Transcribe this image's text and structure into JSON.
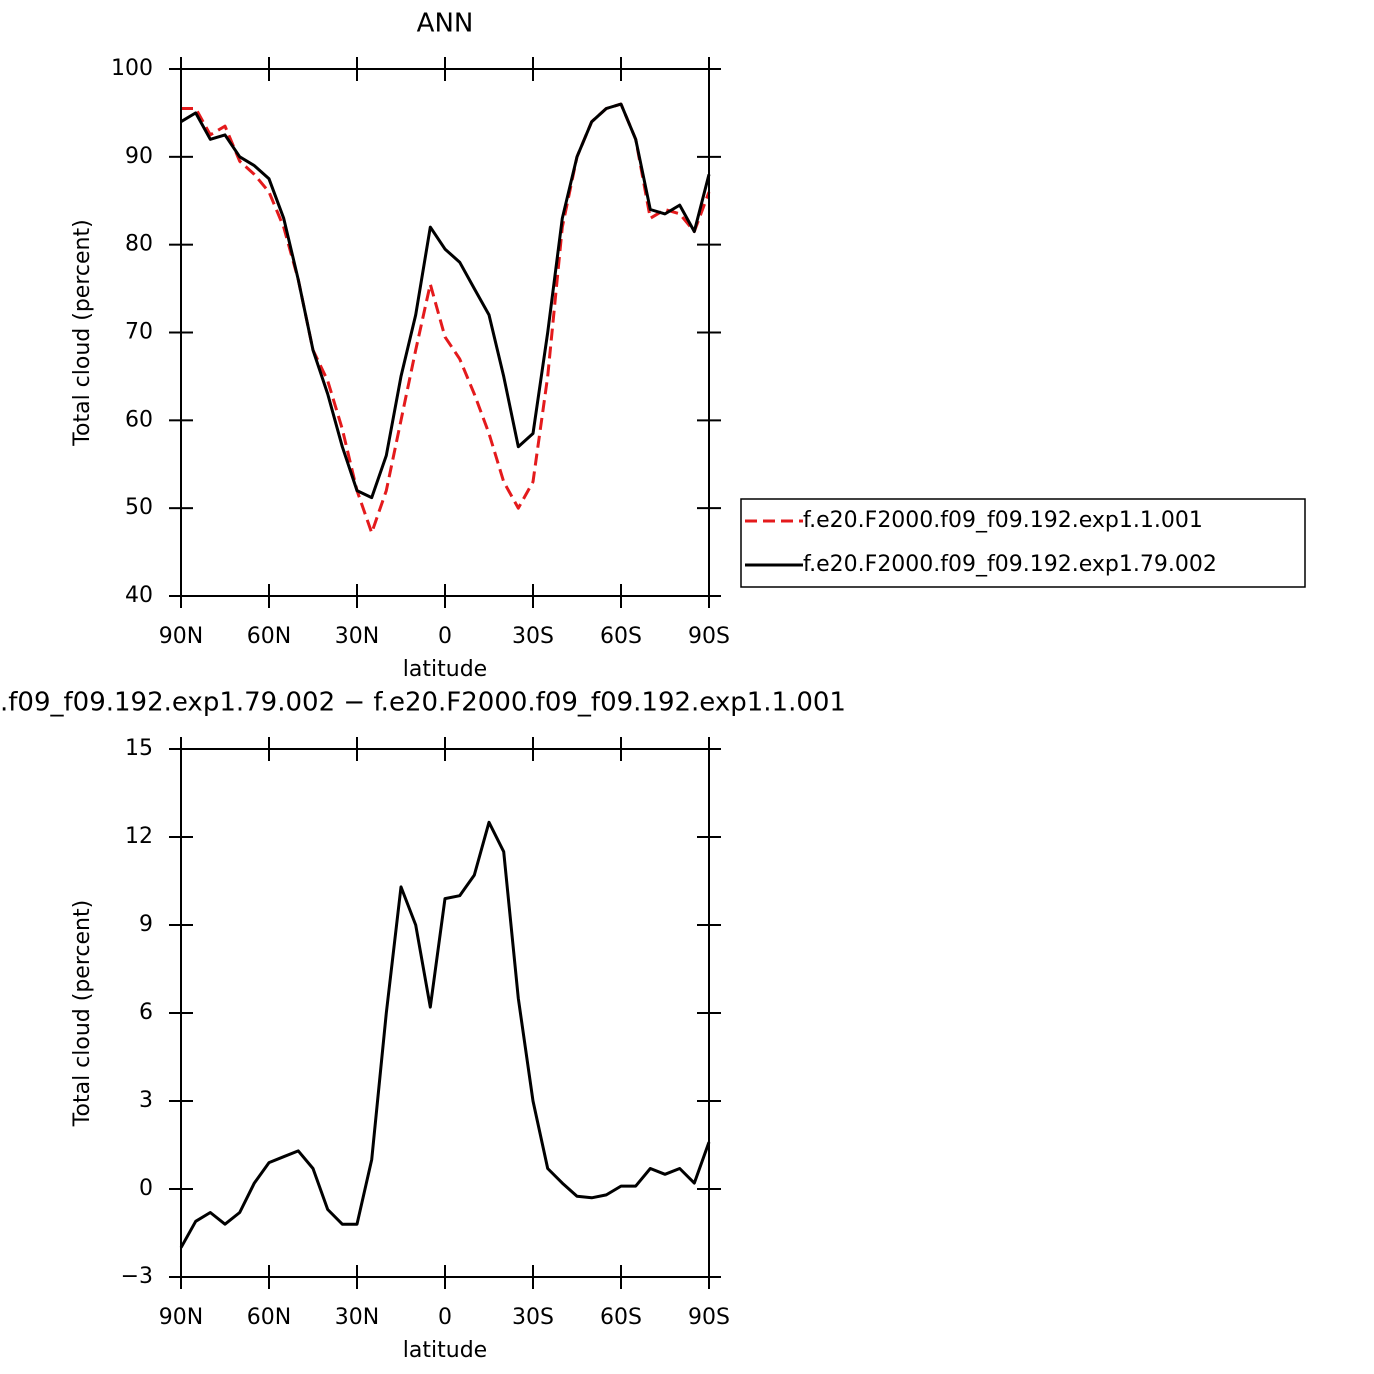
{
  "chart_data": [
    {
      "type": "line",
      "title": "ANN",
      "xlabel": "latitude",
      "ylabel": "Total cloud (percent)",
      "x": [
        90,
        85,
        80,
        75,
        70,
        65,
        60,
        55,
        50,
        45,
        40,
        35,
        30,
        25,
        20,
        15,
        10,
        5,
        0,
        -5,
        -10,
        -15,
        -20,
        -25,
        -30,
        -35,
        -40,
        -45,
        -50,
        -55,
        -60,
        -65,
        -70,
        -75,
        -80,
        -85,
        -90
      ],
      "series": [
        {
          "name": "f.e20.F2000.f09_f09.192.exp1.1.001",
          "color": "#e41a1c",
          "dashed": true,
          "values": [
            95.5,
            95.5,
            92.5,
            93.5,
            89.5,
            88,
            86,
            82,
            76,
            68,
            64.5,
            59,
            52,
            47.2,
            52,
            60,
            68,
            75.5,
            69.5,
            67,
            63,
            58.5,
            53,
            50,
            53,
            65,
            82,
            90,
            94,
            95.5,
            96,
            92,
            83,
            84,
            83.5,
            81.5,
            86
          ]
        },
        {
          "name": "f.e20.F2000.f09_f09.192.exp1.79.002",
          "color": "#000000",
          "dashed": false,
          "values": [
            94,
            95,
            92,
            92.5,
            90,
            89,
            87.5,
            83,
            76,
            68,
            63,
            57,
            52,
            51.2,
            56,
            65,
            72,
            82,
            79.5,
            78,
            75,
            72,
            65,
            57,
            58.5,
            70,
            83,
            90,
            94,
            95.5,
            96,
            92,
            84,
            83.5,
            84.5,
            81.5,
            88
          ]
        }
      ],
      "xlim": [
        90,
        -90
      ],
      "xticks": [
        {
          "value": 90,
          "label": "90N"
        },
        {
          "value": 60,
          "label": "60N"
        },
        {
          "value": 30,
          "label": "30N"
        },
        0,
        {
          "value": -30,
          "label": "30S"
        },
        {
          "value": -60,
          "label": "60S"
        },
        {
          "value": -90,
          "label": "90S"
        }
      ],
      "ylim": [
        40,
        100
      ],
      "yticks": [
        40,
        50,
        60,
        70,
        80,
        90,
        100
      ],
      "legend": "right"
    },
    {
      "type": "line",
      "title": ".f09_f09.192.exp1.79.002 − f.e20.F2000.f09_f09.192.exp1.1.001",
      "xlabel": "latitude",
      "ylabel": "Total cloud (percent)",
      "x": [
        90,
        85,
        80,
        75,
        70,
        65,
        60,
        55,
        50,
        45,
        40,
        35,
        30,
        25,
        20,
        15,
        10,
        5,
        0,
        -5,
        -10,
        -15,
        -20,
        -25,
        -30,
        -35,
        -40,
        -45,
        -50,
        -55,
        -60,
        -65,
        -70,
        -75,
        -80,
        -85,
        -90
      ],
      "values": [
        -2,
        -1.1,
        -0.8,
        -1.2,
        -0.8,
        0.2,
        0.9,
        1.1,
        1.3,
        0.7,
        -0.7,
        -1.2,
        -1.2,
        1,
        6,
        10.3,
        9,
        6.2,
        9.9,
        10,
        10.7,
        12.5,
        11.5,
        6.5,
        3,
        0.7,
        0.2,
        -0.25,
        -0.3,
        -0.2,
        0.1,
        0.1,
        0.7,
        0.5,
        0.7,
        0.2,
        1.6
      ],
      "color": "#000000",
      "xlim": [
        90,
        -90
      ],
      "xticks": [
        {
          "value": 90,
          "label": "90N"
        },
        {
          "value": 60,
          "label": "60N"
        },
        {
          "value": 30,
          "label": "30N"
        },
        0,
        {
          "value": -30,
          "label": "30S"
        },
        {
          "value": -60,
          "label": "60S"
        },
        {
          "value": -90,
          "label": "90S"
        }
      ],
      "ylim": [
        -3,
        15
      ],
      "yticks": [
        {
          "value": -3,
          "label": "−3"
        },
        0,
        3,
        6,
        9,
        12,
        15
      ]
    }
  ]
}
